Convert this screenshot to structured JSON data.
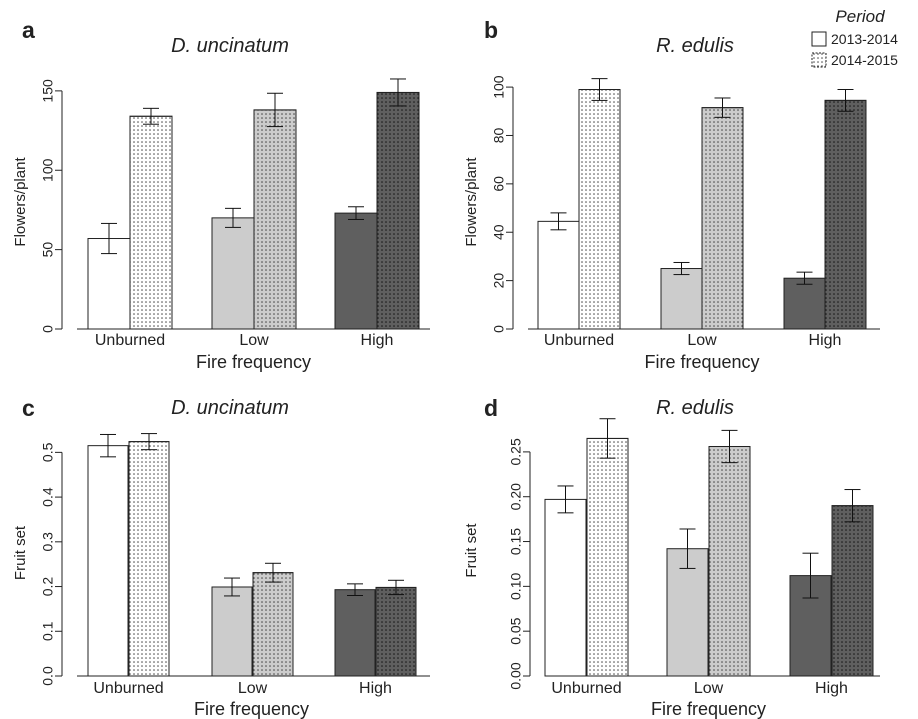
{
  "legend": {
    "title": "Period",
    "entries": [
      "2013-2014",
      "2014-2015"
    ],
    "placement": "top-right"
  },
  "colors": {
    "unburned": "#ffffff",
    "low": "#cccccc",
    "high": "#5f5f5f",
    "edge": "#222222",
    "dots_on_light": "#3a3a3a",
    "dots_on_dark": "#111111"
  },
  "chart_data": [
    {
      "panel": "a",
      "type": "bar",
      "title": "D. uncinatum",
      "xlabel": "Fire frequency",
      "ylabel": "Flowers/plant",
      "categories": [
        "Unburned",
        "Low",
        "High"
      ],
      "series": [
        {
          "name": "2013-2014",
          "values": [
            57,
            70,
            73
          ],
          "errors": [
            9.5,
            6,
            4
          ]
        },
        {
          "name": "2014-2015",
          "values": [
            134,
            138,
            149
          ],
          "errors": [
            5,
            10.5,
            8.5
          ]
        }
      ],
      "ylim": [
        0,
        160
      ],
      "yticks": [
        0,
        50,
        100,
        150
      ],
      "ytick_labels": [
        "0",
        "50",
        "100",
        "150"
      ]
    },
    {
      "panel": "b",
      "type": "bar",
      "title": "R. edulis",
      "xlabel": "Fire frequency",
      "ylabel": "Flowers/plant",
      "categories": [
        "Unburned",
        "Low",
        "High"
      ],
      "series": [
        {
          "name": "2013-2014",
          "values": [
            44.5,
            25,
            21
          ],
          "errors": [
            3.5,
            2.5,
            2.5
          ]
        },
        {
          "name": "2014-2015",
          "values": [
            99,
            91.5,
            94.5
          ],
          "errors": [
            4.5,
            4,
            4.5
          ]
        }
      ],
      "ylim": [
        0,
        105
      ],
      "yticks": [
        0,
        20,
        40,
        60,
        80,
        100
      ],
      "ytick_labels": [
        "0",
        "20",
        "40",
        "60",
        "80",
        "100"
      ]
    },
    {
      "panel": "c",
      "type": "bar",
      "title": "D. uncinatum",
      "xlabel": "Fire frequency",
      "ylabel": "Fruit set",
      "categories": [
        "Unburned",
        "Low",
        "High"
      ],
      "series": [
        {
          "name": "2013-2014",
          "values": [
            0.515,
            0.199,
            0.193
          ],
          "errors": [
            0.025,
            0.02,
            0.013
          ]
        },
        {
          "name": "2014-2015",
          "values": [
            0.524,
            0.231,
            0.198
          ],
          "errors": [
            0.018,
            0.021,
            0.016
          ]
        }
      ],
      "ylim": [
        0,
        0.55
      ],
      "yticks": [
        0,
        0.1,
        0.2,
        0.3,
        0.4,
        0.5
      ],
      "ytick_labels": [
        "0.0",
        "0.1",
        "0.2",
        "0.3",
        "0.4",
        "0.5"
      ]
    },
    {
      "panel": "d",
      "type": "bar",
      "title": "R. edulis",
      "xlabel": "Fire frequency",
      "ylabel": "Fruit set",
      "categories": [
        "Unburned",
        "Low",
        "High"
      ],
      "series": [
        {
          "name": "2013-2014",
          "values": [
            0.197,
            0.142,
            0.112
          ],
          "errors": [
            0.015,
            0.022,
            0.025
          ]
        },
        {
          "name": "2014-2015",
          "values": [
            0.265,
            0.256,
            0.19
          ],
          "errors": [
            0.022,
            0.018,
            0.018
          ]
        }
      ],
      "ylim": [
        0,
        0.28
      ],
      "yticks": [
        0,
        0.05,
        0.1,
        0.15,
        0.2,
        0.25
      ],
      "ytick_labels": [
        "0.00",
        "0.05",
        "0.10",
        "0.15",
        "0.20",
        "0.25"
      ]
    }
  ]
}
